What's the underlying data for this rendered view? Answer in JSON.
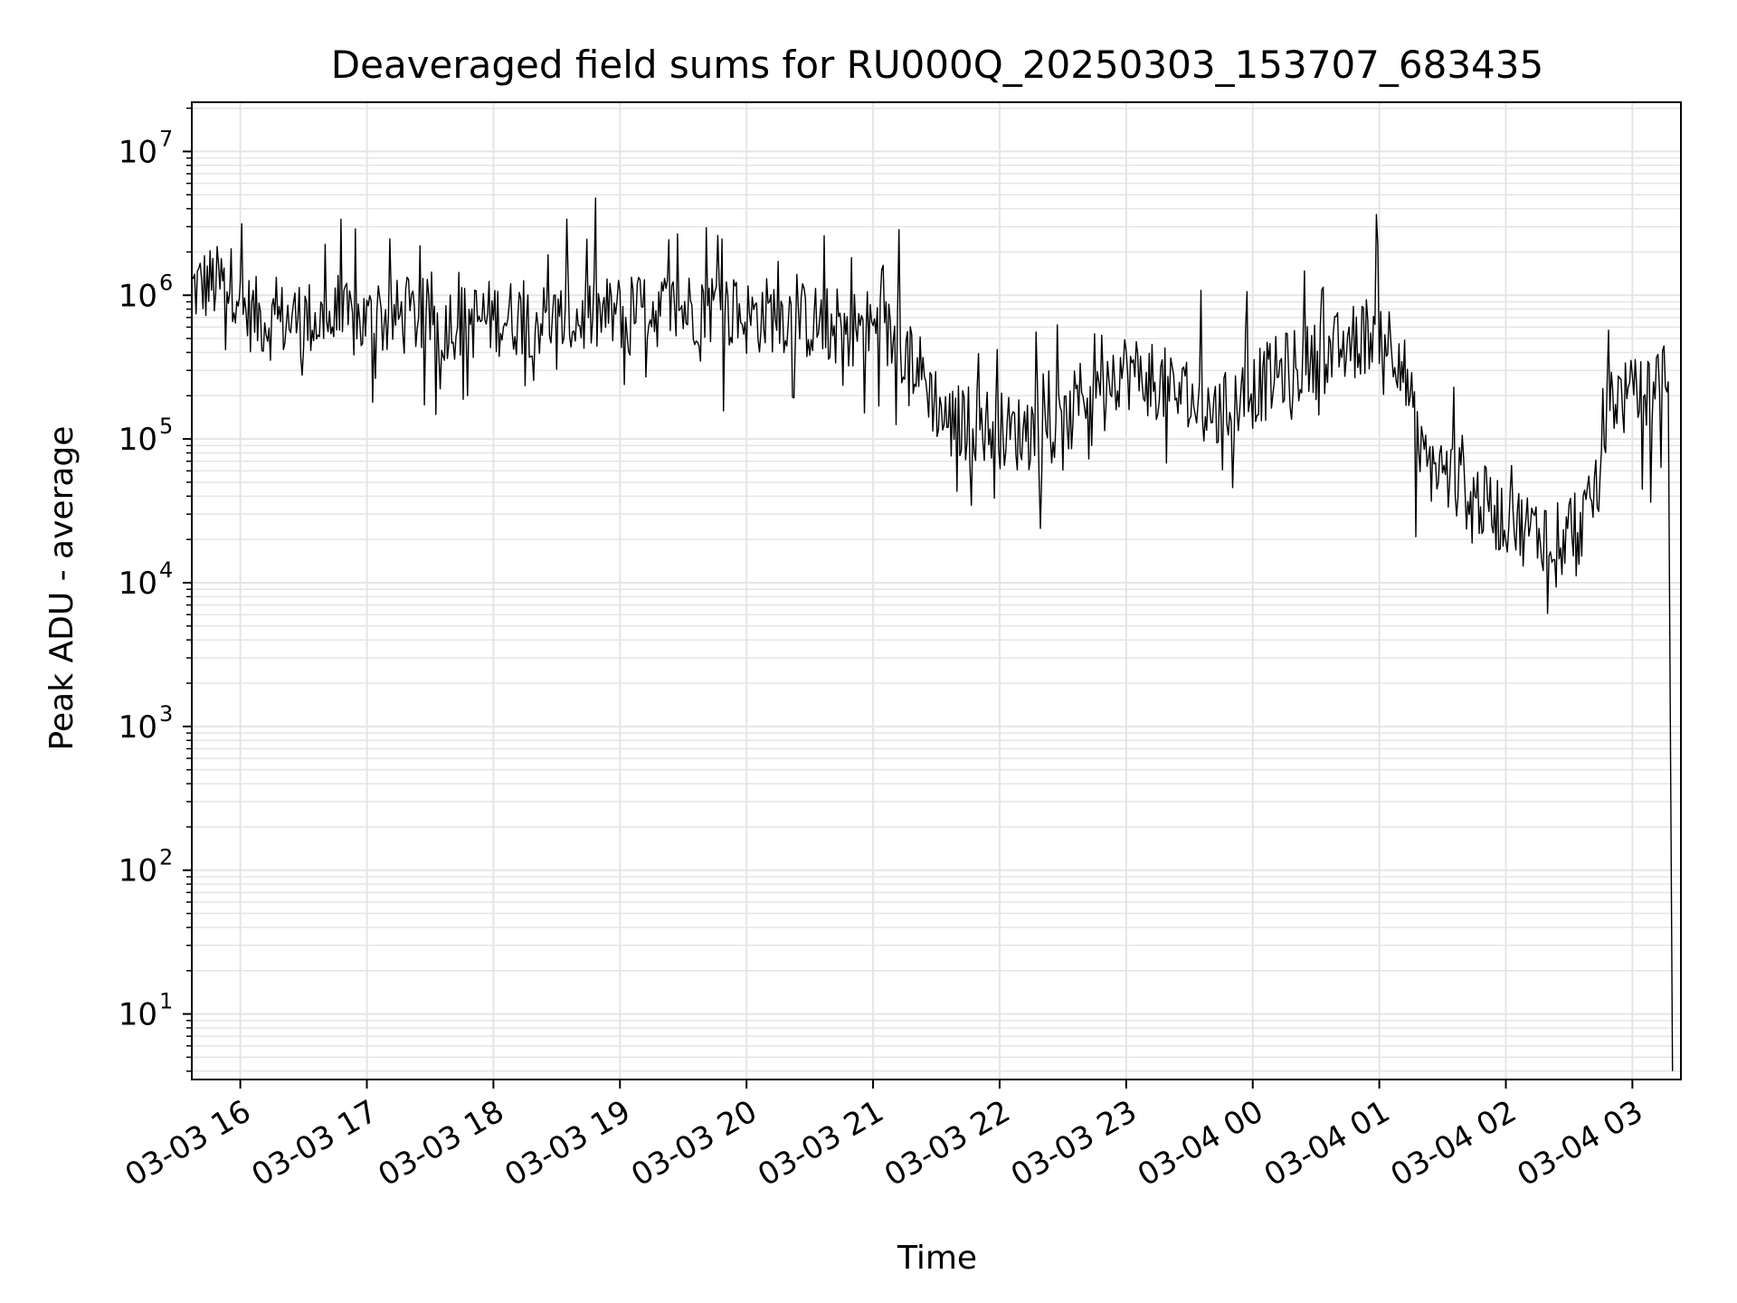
{
  "chart_data": {
    "type": "line",
    "title": "Deaveraged field sums for RU000Q_20250303_153707_683435",
    "xlabel": "Time",
    "ylabel": "Peak ADU - average",
    "yscale": "log",
    "ylim": [
      3.5,
      22000000
    ],
    "xlim": [
      "2025-03-03 15:37",
      "2025-03-04 03:23"
    ],
    "grid": true,
    "line_color": "#000000",
    "grid_color": "#e5e5e5",
    "x_ticks": [
      {
        "label": "03-03 16",
        "t": "2025-03-03 16:00"
      },
      {
        "label": "03-03 17",
        "t": "2025-03-03 17:00"
      },
      {
        "label": "03-03 18",
        "t": "2025-03-03 18:00"
      },
      {
        "label": "03-03 19",
        "t": "2025-03-03 19:00"
      },
      {
        "label": "03-03 20",
        "t": "2025-03-03 20:00"
      },
      {
        "label": "03-03 21",
        "t": "2025-03-03 21:00"
      },
      {
        "label": "03-03 22",
        "t": "2025-03-03 22:00"
      },
      {
        "label": "03-03 23",
        "t": "2025-03-03 23:00"
      },
      {
        "label": "03-04 00",
        "t": "2025-03-04 00:00"
      },
      {
        "label": "03-04 01",
        "t": "2025-03-04 01:00"
      },
      {
        "label": "03-04 02",
        "t": "2025-03-04 02:00"
      },
      {
        "label": "03-04 03",
        "t": "2025-03-04 03:00"
      }
    ],
    "y_ticks": [
      {
        "value": 10,
        "base": "10",
        "exp": "1"
      },
      {
        "value": 100,
        "base": "10",
        "exp": "2"
      },
      {
        "value": 1000,
        "base": "10",
        "exp": "3"
      },
      {
        "value": 10000,
        "base": "10",
        "exp": "4"
      },
      {
        "value": 100000,
        "base": "10",
        "exp": "5"
      },
      {
        "value": 1000000,
        "base": "10",
        "exp": "6"
      },
      {
        "value": 10000000,
        "base": "10",
        "exp": "7"
      }
    ],
    "series": [
      {
        "x": [
          "2025-03-03 15:37",
          "2025-03-03 15:45",
          "2025-03-03 15:55",
          "2025-03-03 15:59",
          "2025-03-03 16:00",
          "2025-03-03 16:15",
          "2025-03-03 16:30",
          "2025-03-03 16:45",
          "2025-03-03 17:00",
          "2025-03-03 17:15",
          "2025-03-03 17:30",
          "2025-03-03 17:45",
          "2025-03-03 18:00",
          "2025-03-03 18:15",
          "2025-03-03 18:30",
          "2025-03-03 18:45",
          "2025-03-03 19:00",
          "2025-03-03 19:15",
          "2025-03-03 19:30",
          "2025-03-03 19:45",
          "2025-03-03 20:00",
          "2025-03-03 20:15",
          "2025-03-03 20:30",
          "2025-03-03 20:45",
          "2025-03-03 21:00",
          "2025-03-03 21:15",
          "2025-03-03 21:25",
          "2025-03-03 21:35",
          "2025-03-03 21:50",
          "2025-03-03 22:05",
          "2025-03-03 22:20",
          "2025-03-03 22:30",
          "2025-03-03 22:45",
          "2025-03-03 23:00",
          "2025-03-03 23:15",
          "2025-03-03 23:30",
          "2025-03-03 23:45",
          "2025-03-04 00:00",
          "2025-03-04 00:15",
          "2025-03-04 00:30",
          "2025-03-04 00:45",
          "2025-03-04 01:00",
          "2025-03-04 01:10",
          "2025-03-04 01:20",
          "2025-03-04 01:30",
          "2025-03-04 01:40",
          "2025-03-04 01:50",
          "2025-03-04 02:00",
          "2025-03-04 02:15",
          "2025-03-04 02:30",
          "2025-03-04 02:40",
          "2025-03-04 02:50",
          "2025-03-04 03:00",
          "2025-03-04 03:10",
          "2025-03-04 03:15",
          "2025-03-04 03:17",
          "2025-03-04 03:19"
        ],
        "y": [
          1100000,
          1200000,
          1200000,
          1200000,
          800000,
          650000,
          700000,
          650000,
          650000,
          700000,
          700000,
          650000,
          700000,
          700000,
          650000,
          700000,
          750000,
          800000,
          800000,
          850000,
          700000,
          750000,
          650000,
          600000,
          600000,
          450000,
          250000,
          130000,
          130000,
          110000,
          110000,
          110000,
          300000,
          300000,
          250000,
          180000,
          150000,
          220000,
          300000,
          350000,
          450000,
          600000,
          400000,
          70000,
          60000,
          45000,
          35000,
          28000,
          22000,
          25000,
          30000,
          200000,
          190000,
          230000,
          280000,
          250000,
          4
        ]
      }
    ]
  }
}
